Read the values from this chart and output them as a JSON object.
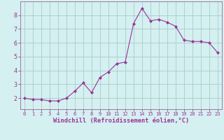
{
  "x": [
    0,
    1,
    2,
    3,
    4,
    5,
    6,
    7,
    8,
    9,
    10,
    11,
    12,
    13,
    14,
    15,
    16,
    17,
    18,
    19,
    20,
    21,
    22,
    23
  ],
  "y": [
    2.0,
    1.9,
    1.9,
    1.8,
    1.8,
    2.0,
    2.5,
    3.1,
    2.4,
    3.5,
    3.9,
    4.5,
    4.6,
    7.4,
    8.5,
    7.6,
    7.7,
    7.5,
    7.2,
    6.2,
    6.1,
    6.1,
    6.0,
    5.3
  ],
  "line_color": "#993399",
  "marker": "D",
  "marker_size": 2.0,
  "bg_color": "#d4f0f0",
  "grid_color": "#aacccc",
  "xlabel": "Windchill (Refroidissement éolien,°C)",
  "xlim": [
    -0.5,
    23.5
  ],
  "ylim": [
    1.2,
    9.0
  ],
  "xticks": [
    0,
    1,
    2,
    3,
    4,
    5,
    6,
    7,
    8,
    9,
    10,
    11,
    12,
    13,
    14,
    15,
    16,
    17,
    18,
    19,
    20,
    21,
    22,
    23
  ],
  "yticks": [
    2,
    3,
    4,
    5,
    6,
    7,
    8
  ],
  "font_color": "#993399",
  "spine_color": "#996699",
  "xtick_fontsize": 5.0,
  "ytick_fontsize": 6.0,
  "xlabel_fontsize": 6.2
}
